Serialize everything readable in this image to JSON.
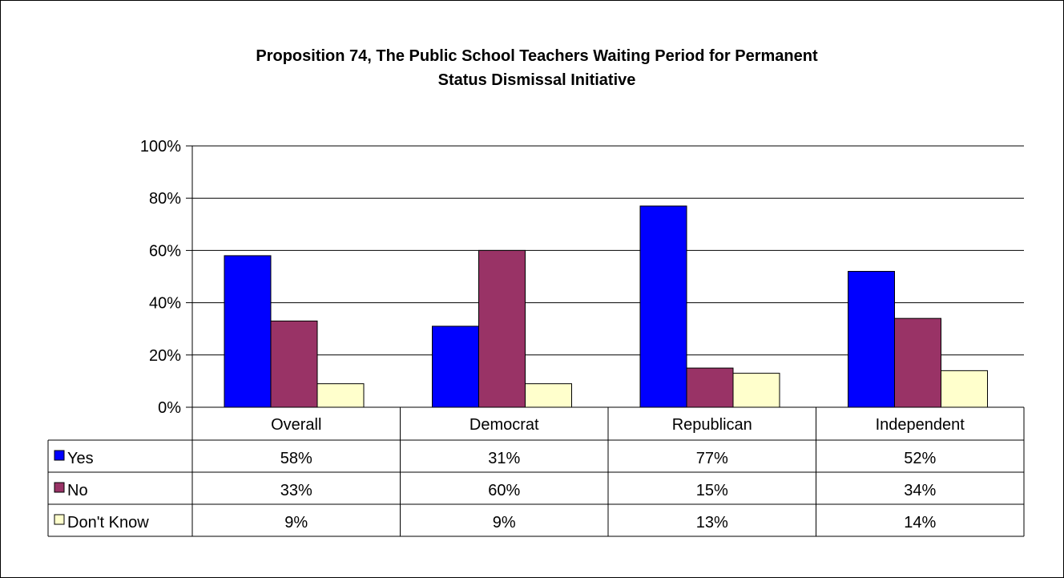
{
  "chart_data": {
    "type": "bar",
    "title_lines": [
      "Proposition 74, The Public School Teachers Waiting Period for Permanent",
      "Status Dismissal Initiative"
    ],
    "categories": [
      "Overall",
      "Democrat",
      "Republican",
      "Independent"
    ],
    "series": [
      {
        "name": "Yes",
        "values": [
          58,
          31,
          77,
          52
        ],
        "labels": [
          "58%",
          "31%",
          "77%",
          "52%"
        ],
        "color": "#0000ff"
      },
      {
        "name": "No",
        "values": [
          33,
          60,
          15,
          34
        ],
        "labels": [
          "33%",
          "60%",
          "15%",
          "34%"
        ],
        "color": "#993366"
      },
      {
        "name": "Don't Know",
        "values": [
          9,
          9,
          13,
          14
        ],
        "labels": [
          "9%",
          "9%",
          "13%",
          "14%"
        ],
        "color": "#ffffcc"
      }
    ],
    "yticks": [
      "0%",
      "20%",
      "40%",
      "60%",
      "80%",
      "100%"
    ],
    "ylim": [
      0,
      100
    ],
    "grid": true,
    "legend": "data-table"
  }
}
